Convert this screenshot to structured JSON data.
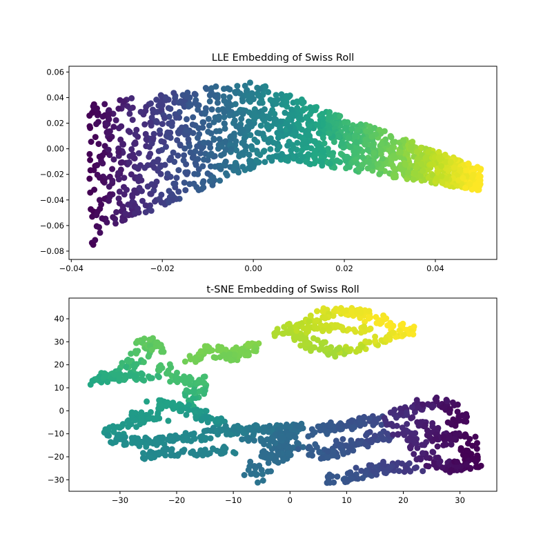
{
  "chart_data": [
    {
      "type": "scatter",
      "title": "LLE Embedding of Swiss Roll",
      "xlabel": "",
      "ylabel": "",
      "xlim": [
        -0.0405,
        0.0535
      ],
      "ylim": [
        -0.0865,
        0.0645
      ],
      "xticks": [
        -0.04,
        -0.02,
        0.0,
        0.02,
        0.04
      ],
      "xtick_labels": [
        "−0.04",
        "−0.02",
        "0.00",
        "0.02",
        "0.04"
      ],
      "yticks": [
        -0.08,
        -0.06,
        -0.04,
        -0.02,
        0.0,
        0.02,
        0.04,
        0.06
      ],
      "ytick_labels": [
        "−0.08",
        "−0.06",
        "−0.04",
        "−0.02",
        "0.00",
        "0.02",
        "0.04",
        "0.06"
      ],
      "grid": false,
      "colormap": "viridis",
      "marker_size_px": 9,
      "point_count_approx": 1500,
      "description": "Boomerang/wedge shaped cloud colored by position along the roll; purple at left vertical edge (x≈-0.035, y from -0.08 to 0.035), rising to peak near x≈0.00, y≈0.057 (teal), then tapering down-right to yellow tip at x≈0.05, y≈-0.02",
      "shape_outline": [
        {
          "x": -0.036,
          "y": 0.035,
          "c": 0.0
        },
        {
          "x": -0.02,
          "y": 0.044,
          "c": 0.15
        },
        {
          "x": -0.01,
          "y": 0.048,
          "c": 0.28
        },
        {
          "x": 0.0,
          "y": 0.057,
          "c": 0.45
        },
        {
          "x": 0.01,
          "y": 0.04,
          "c": 0.55
        },
        {
          "x": 0.02,
          "y": 0.025,
          "c": 0.68
        },
        {
          "x": 0.03,
          "y": 0.01,
          "c": 0.82
        },
        {
          "x": 0.04,
          "y": -0.005,
          "c": 0.92
        },
        {
          "x": 0.05,
          "y": -0.017,
          "c": 1.0
        },
        {
          "x": 0.048,
          "y": -0.032,
          "c": 1.0
        },
        {
          "x": 0.035,
          "y": -0.022,
          "c": 0.88
        },
        {
          "x": 0.02,
          "y": -0.01,
          "c": 0.7
        },
        {
          "x": 0.005,
          "y": -0.008,
          "c": 0.5
        },
        {
          "x": -0.01,
          "y": -0.018,
          "c": 0.3
        },
        {
          "x": -0.02,
          "y": -0.028,
          "c": 0.18
        },
        {
          "x": -0.03,
          "y": -0.06,
          "c": 0.05
        },
        {
          "x": -0.036,
          "y": -0.079,
          "c": 0.0
        }
      ]
    },
    {
      "type": "scatter",
      "title": "t-SNE Embedding of Swiss Roll",
      "xlabel": "",
      "ylabel": "",
      "xlim": [
        -39,
        36.5
      ],
      "ylim": [
        -35,
        49
      ],
      "xticks": [
        -30,
        -20,
        -10,
        0,
        10,
        20,
        30
      ],
      "xtick_labels": [
        "−30",
        "−20",
        "−10",
        "0",
        "10",
        "20",
        "30"
      ],
      "yticks": [
        -30,
        -20,
        -10,
        0,
        10,
        20,
        30,
        40
      ],
      "ytick_labels": [
        "−30",
        "−20",
        "−10",
        "0",
        "10",
        "20",
        "30",
        "40"
      ],
      "grid": false,
      "colormap": "viridis",
      "marker_size_px": 9,
      "point_count_approx": 1500,
      "description": "Disconnected strand-like clusters: yellow loop cluster top-right (x 0..22, y 24..45); green strands upper-left (x -36..-5, y 12..30); teal/blue band across middle (x -32..12, y -30..5); purple dense loop at right (x 18..32, y -25..4)",
      "clusters": [
        {
          "name": "yellow-loop",
          "x_range": [
            -1,
            21
          ],
          "y_range": [
            24,
            45
          ],
          "c": 0.93
        },
        {
          "name": "green-upper-strand",
          "x_range": [
            -18,
            -5
          ],
          "y_range": [
            22,
            29
          ],
          "c": 0.8
        },
        {
          "name": "green-left-arm",
          "x_range": [
            -36,
            -22
          ],
          "y_range": [
            12,
            31
          ],
          "c": 0.7
        },
        {
          "name": "green-descend",
          "x_range": [
            -22,
            -15
          ],
          "y_range": [
            0,
            22
          ],
          "c": 0.62
        },
        {
          "name": "teal-left-band",
          "x_range": [
            -33,
            -12
          ],
          "y_range": [
            -20,
            4
          ],
          "c": 0.5
        },
        {
          "name": "teal-middle-band",
          "x_range": [
            -15,
            3
          ],
          "y_range": [
            -12,
            -5
          ],
          "c": 0.4
        },
        {
          "name": "blue-lower",
          "x_range": [
            -7,
            3
          ],
          "y_range": [
            -30,
            -15
          ],
          "c": 0.35
        },
        {
          "name": "blue-right-band",
          "x_range": [
            3,
            20
          ],
          "y_range": [
            -31,
            -3
          ],
          "c": 0.22
        },
        {
          "name": "purple-loop",
          "x_range": [
            18,
            32
          ],
          "y_range": [
            -25,
            4
          ],
          "c": 0.05
        }
      ]
    }
  ]
}
